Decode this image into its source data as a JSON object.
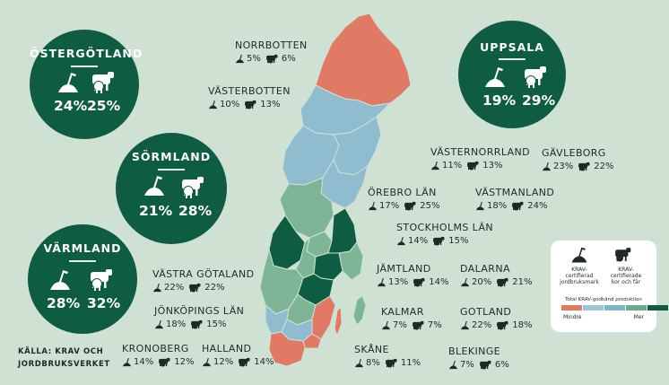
{
  "badges": [
    {
      "name": "ÖSTERGÖTLAND",
      "soil": "24%",
      "cows": "25%"
    },
    {
      "name": "SÖRMLAND",
      "soil": "21%",
      "cows": "28%"
    },
    {
      "name": "VÄRMLAND",
      "soil": "28%",
      "cows": "32%"
    },
    {
      "name": "UPPSALA",
      "soil": "19%",
      "cows": "29%"
    }
  ],
  "regions": [
    {
      "name": "NORRBOTTEN",
      "soil": "5%",
      "cows": "6%"
    },
    {
      "name": "VÄSTERBOTTEN",
      "soil": "10%",
      "cows": "13%"
    },
    {
      "name": "VÄSTERNORRLAND",
      "soil": "11%",
      "cows": "13%"
    },
    {
      "name": "GÄVLEBORG",
      "soil": "23%",
      "cows": "22%"
    },
    {
      "name": "ÖREBRO LÄN",
      "soil": "17%",
      "cows": "25%"
    },
    {
      "name": "VÄSTMANLAND",
      "soil": "18%",
      "cows": "24%"
    },
    {
      "name": "STOCKHOLMS LÄN",
      "soil": "14%",
      "cows": "15%"
    },
    {
      "name": "JÄMTLAND",
      "soil": "13%",
      "cows": "14%"
    },
    {
      "name": "DALARNA",
      "soil": "20%",
      "cows": "21%"
    },
    {
      "name": "VÄSTRA GÖTALAND",
      "soil": "22%",
      "cows": "22%"
    },
    {
      "name": "JÖNKÖPINGS LÄN",
      "soil": "18%",
      "cows": "15%"
    },
    {
      "name": "KALMAR",
      "soil": "7%",
      "cows": "7%"
    },
    {
      "name": "GOTLAND",
      "soil": "22%",
      "cows": "18%"
    },
    {
      "name": "KRONOBERG",
      "soil": "14%",
      "cows": "12%"
    },
    {
      "name": "HALLAND",
      "soil": "12%",
      "cows": "14%"
    },
    {
      "name": "SKÅNE",
      "soil": "8%",
      "cows": "11%"
    },
    {
      "name": "BLEKINGE",
      "soil": "7%",
      "cows": "6%"
    }
  ],
  "source": [
    "KÄLLA: KRAV OCH",
    "JORDBRUKSVERKET"
  ],
  "legend": {
    "soil_label": [
      "KRAV-",
      "certifierad",
      "jordbruksmark"
    ],
    "cows_label": [
      "KRAV-",
      "certifierade",
      "kor och får"
    ],
    "scale_title": "Total KRAV-godkänd produktion",
    "low": "Mindre",
    "high": "Mer",
    "scale_colors": [
      "#e07a64",
      "#9cc5d6",
      "#7ab7c9",
      "#6fa88a",
      "#0e5c42"
    ]
  },
  "colors": {
    "background": "#cfe1d3",
    "badge": "#0e5c42",
    "low": "#e07a64",
    "blue": "#8fbdcf",
    "green_light": "#7fb597",
    "green_dark": "#0e5c42"
  }
}
